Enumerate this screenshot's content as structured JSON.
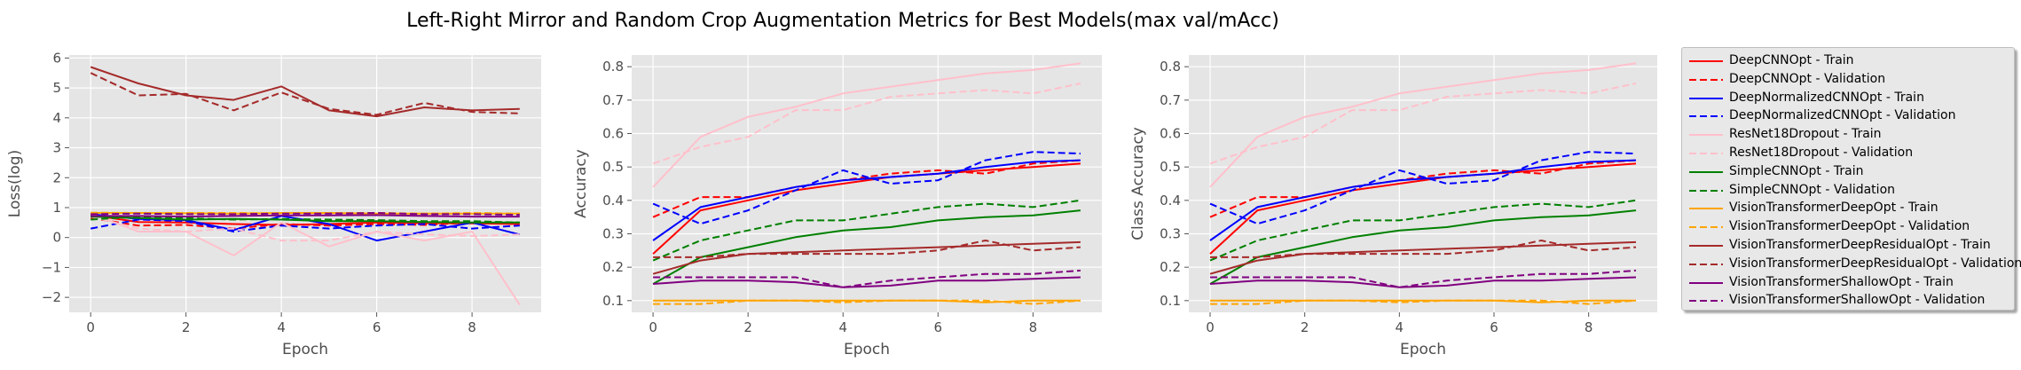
{
  "figure": {
    "title": "Left-Right Mirror and Random Crop Augmentation Metrics for Best Models(max val/mAcc)"
  },
  "styles": {
    "DeepCNNOpt": "#ff0000",
    "DeepNormalizedCNNOpt": "#0000ff",
    "ResNet18Dropout": "#ffc0cb",
    "SimpleCNNOpt": "#008000",
    "VisionTransformerDeepOpt": "#ffa500",
    "VisionTransformerDeepResidualOpt": "#a52a2a",
    "VisionTransformerShallowOpt": "#800080"
  },
  "legend": [
    {
      "label": "DeepCNNOpt - Train",
      "model": "DeepCNNOpt",
      "dash": false
    },
    {
      "label": "DeepCNNOpt - Validation",
      "model": "DeepCNNOpt",
      "dash": true
    },
    {
      "label": "DeepNormalizedCNNOpt - Train",
      "model": "DeepNormalizedCNNOpt",
      "dash": false
    },
    {
      "label": "DeepNormalizedCNNOpt - Validation",
      "model": "DeepNormalizedCNNOpt",
      "dash": true
    },
    {
      "label": "ResNet18Dropout - Train",
      "model": "ResNet18Dropout",
      "dash": false
    },
    {
      "label": "ResNet18Dropout - Validation",
      "model": "ResNet18Dropout",
      "dash": true
    },
    {
      "label": "SimpleCNNOpt - Train",
      "model": "SimpleCNNOpt",
      "dash": false
    },
    {
      "label": "SimpleCNNOpt - Validation",
      "model": "SimpleCNNOpt",
      "dash": true
    },
    {
      "label": "VisionTransformerDeepOpt - Train",
      "model": "VisionTransformerDeepOpt",
      "dash": false
    },
    {
      "label": "VisionTransformerDeepOpt - Validation",
      "model": "VisionTransformerDeepOpt",
      "dash": true
    },
    {
      "label": "VisionTransformerDeepResidualOpt - Train",
      "model": "VisionTransformerDeepResidualOpt",
      "dash": false
    },
    {
      "label": "VisionTransformerDeepResidualOpt - Validation",
      "model": "VisionTransformerDeepResidualOpt",
      "dash": true
    },
    {
      "label": "VisionTransformerShallowOpt - Train",
      "model": "VisionTransformerShallowOpt",
      "dash": false
    },
    {
      "label": "VisionTransformerShallowOpt - Validation",
      "model": "VisionTransformerShallowOpt",
      "dash": true
    }
  ],
  "chart_data": [
    {
      "type": "line",
      "xlabel": "Epoch",
      "ylabel": "Loss(log)",
      "xlim": [
        -0.45,
        9.45
      ],
      "ylim": [
        -2.5,
        6.1
      ],
      "xticks": [
        0,
        2,
        4,
        6,
        8
      ],
      "yticks": [
        -2,
        -1,
        0,
        1,
        2,
        3,
        4,
        5,
        6
      ],
      "grid": true,
      "x": [
        0,
        1,
        2,
        3,
        4,
        5,
        6,
        7,
        8,
        9
      ],
      "series": [
        {
          "name": "DeepCNNOpt - Train",
          "model": "DeepCNNOpt",
          "dash": false,
          "values": [
            0.75,
            0.52,
            0.5,
            0.45,
            0.42,
            0.45,
            0.5,
            0.48,
            0.47,
            0.45
          ]
        },
        {
          "name": "DeepCNNOpt - Validation",
          "model": "DeepCNNOpt",
          "dash": true,
          "values": [
            0.65,
            0.4,
            0.42,
            0.3,
            0.45,
            0.4,
            0.45,
            0.42,
            0.5,
            0.45
          ]
        },
        {
          "name": "DeepNormalizedCNNOpt - Train",
          "model": "DeepNormalizedCNNOpt",
          "dash": false,
          "values": [
            0.78,
            0.62,
            0.58,
            0.25,
            0.72,
            0.45,
            -0.1,
            0.2,
            0.5,
            0.1
          ]
        },
        {
          "name": "DeepNormalizedCNNOpt - Validation",
          "model": "DeepNormalizedCNNOpt",
          "dash": true,
          "values": [
            0.3,
            0.6,
            0.55,
            0.2,
            0.4,
            0.3,
            0.4,
            0.45,
            0.3,
            0.4
          ]
        },
        {
          "name": "ResNet18Dropout - Train",
          "model": "ResNet18Dropout",
          "dash": false,
          "values": [
            0.8,
            0.2,
            0.2,
            -0.6,
            0.5,
            -0.3,
            0.2,
            -0.1,
            0.2,
            -2.25
          ]
        },
        {
          "name": "ResNet18Dropout - Validation",
          "model": "ResNet18Dropout",
          "dash": true,
          "values": [
            0.7,
            0.3,
            0.2,
            0.3,
            -0.1,
            -0.1,
            0.2,
            0.1,
            0.05,
            0.1
          ]
        },
        {
          "name": "SimpleCNNOpt - Train",
          "model": "SimpleCNNOpt",
          "dash": false,
          "values": [
            0.7,
            0.65,
            0.6,
            0.62,
            0.6,
            0.55,
            0.55,
            0.52,
            0.5,
            0.5
          ]
        },
        {
          "name": "SimpleCNNOpt - Validation",
          "model": "SimpleCNNOpt",
          "dash": true,
          "values": [
            0.6,
            0.7,
            0.65,
            0.6,
            0.62,
            0.6,
            0.58,
            0.55,
            0.55,
            0.5
          ]
        },
        {
          "name": "VisionTransformerDeepOpt - Train",
          "model": "VisionTransformerDeepOpt",
          "dash": false,
          "values": [
            0.82,
            0.82,
            0.81,
            0.8,
            0.82,
            0.82,
            0.8,
            0.8,
            0.8,
            0.8
          ]
        },
        {
          "name": "VisionTransformerDeepOpt - Validation",
          "model": "VisionTransformerDeepOpt",
          "dash": true,
          "values": [
            0.83,
            0.82,
            0.82,
            0.82,
            0.81,
            0.82,
            0.82,
            0.8,
            0.82,
            0.8
          ]
        },
        {
          "name": "VisionTransformerDeepResidualOpt - Train",
          "model": "VisionTransformerDeepResidualOpt",
          "dash": false,
          "values": [
            5.7,
            5.15,
            4.75,
            4.6,
            5.05,
            4.25,
            4.05,
            4.35,
            4.25,
            4.3
          ]
        },
        {
          "name": "VisionTransformerDeepResidualOpt - Validation",
          "model": "VisionTransformerDeepResidualOpt",
          "dash": true,
          "values": [
            5.5,
            4.75,
            4.8,
            4.25,
            4.85,
            4.3,
            4.1,
            4.5,
            4.2,
            4.15
          ]
        },
        {
          "name": "VisionTransformerShallowOpt - Train",
          "model": "VisionTransformerShallowOpt",
          "dash": false,
          "values": [
            0.72,
            0.72,
            0.7,
            0.72,
            0.74,
            0.74,
            0.75,
            0.72,
            0.7,
            0.7
          ]
        },
        {
          "name": "VisionTransformerShallowOpt - Validation",
          "model": "VisionTransformerShallowOpt",
          "dash": true,
          "values": [
            0.78,
            0.8,
            0.78,
            0.78,
            0.8,
            0.8,
            0.82,
            0.78,
            0.78,
            0.76
          ]
        }
      ]
    },
    {
      "type": "line",
      "xlabel": "Epoch",
      "ylabel": "Accuracy",
      "xlim": [
        -0.45,
        9.45
      ],
      "ylim": [
        0.065,
        0.835
      ],
      "xticks": [
        0,
        2,
        4,
        6,
        8
      ],
      "yticks": [
        0.1,
        0.2,
        0.3,
        0.4,
        0.5,
        0.6,
        0.7,
        0.8
      ],
      "grid": true,
      "x": [
        0,
        1,
        2,
        3,
        4,
        5,
        6,
        7,
        8,
        9
      ],
      "series": [
        {
          "name": "DeepCNNOpt - Train",
          "model": "DeepCNNOpt",
          "dash": false,
          "values": [
            0.24,
            0.37,
            0.4,
            0.43,
            0.45,
            0.47,
            0.48,
            0.49,
            0.5,
            0.51
          ]
        },
        {
          "name": "DeepCNNOpt - Validation",
          "model": "DeepCNNOpt",
          "dash": true,
          "values": [
            0.35,
            0.41,
            0.41,
            0.44,
            0.46,
            0.48,
            0.49,
            0.48,
            0.51,
            0.52
          ]
        },
        {
          "name": "DeepNormalizedCNNOpt - Train",
          "model": "DeepNormalizedCNNOpt",
          "dash": false,
          "values": [
            0.28,
            0.38,
            0.41,
            0.44,
            0.46,
            0.47,
            0.48,
            0.5,
            0.515,
            0.52
          ]
        },
        {
          "name": "DeepNormalizedCNNOpt - Validation",
          "model": "DeepNormalizedCNNOpt",
          "dash": true,
          "values": [
            0.39,
            0.33,
            0.37,
            0.43,
            0.49,
            0.45,
            0.46,
            0.52,
            0.545,
            0.54
          ]
        },
        {
          "name": "ResNet18Dropout - Train",
          "model": "ResNet18Dropout",
          "dash": false,
          "values": [
            0.44,
            0.59,
            0.65,
            0.68,
            0.72,
            0.74,
            0.76,
            0.78,
            0.79,
            0.81
          ]
        },
        {
          "name": "ResNet18Dropout - Validation",
          "model": "ResNet18Dropout",
          "dash": true,
          "values": [
            0.51,
            0.56,
            0.59,
            0.67,
            0.67,
            0.71,
            0.72,
            0.73,
            0.72,
            0.75
          ]
        },
        {
          "name": "SimpleCNNOpt - Train",
          "model": "SimpleCNNOpt",
          "dash": false,
          "values": [
            0.15,
            0.23,
            0.26,
            0.29,
            0.31,
            0.32,
            0.34,
            0.35,
            0.355,
            0.37
          ]
        },
        {
          "name": "SimpleCNNOpt - Validation",
          "model": "SimpleCNNOpt",
          "dash": true,
          "values": [
            0.22,
            0.28,
            0.31,
            0.34,
            0.34,
            0.36,
            0.38,
            0.39,
            0.38,
            0.4
          ]
        },
        {
          "name": "VisionTransformerDeepOpt - Train",
          "model": "VisionTransformerDeepOpt",
          "dash": false,
          "values": [
            0.1,
            0.1,
            0.1,
            0.1,
            0.1,
            0.1,
            0.1,
            0.095,
            0.1,
            0.1
          ]
        },
        {
          "name": "VisionTransformerDeepOpt - Validation",
          "model": "VisionTransformerDeepOpt",
          "dash": true,
          "values": [
            0.09,
            0.09,
            0.1,
            0.1,
            0.095,
            0.1,
            0.1,
            0.1,
            0.09,
            0.1
          ]
        },
        {
          "name": "VisionTransformerDeepResidualOpt - Train",
          "model": "VisionTransformerDeepResidualOpt",
          "dash": false,
          "values": [
            0.18,
            0.22,
            0.24,
            0.245,
            0.25,
            0.255,
            0.26,
            0.265,
            0.27,
            0.275
          ]
        },
        {
          "name": "VisionTransformerDeepResidualOpt - Validation",
          "model": "VisionTransformerDeepResidualOpt",
          "dash": true,
          "values": [
            0.23,
            0.23,
            0.24,
            0.24,
            0.24,
            0.24,
            0.25,
            0.28,
            0.25,
            0.26
          ]
        },
        {
          "name": "VisionTransformerShallowOpt - Train",
          "model": "VisionTransformerShallowOpt",
          "dash": false,
          "values": [
            0.15,
            0.16,
            0.16,
            0.155,
            0.14,
            0.145,
            0.16,
            0.16,
            0.165,
            0.17
          ]
        },
        {
          "name": "VisionTransformerShallowOpt - Validation",
          "model": "VisionTransformerShallowOpt",
          "dash": true,
          "values": [
            0.17,
            0.17,
            0.17,
            0.17,
            0.14,
            0.16,
            0.17,
            0.18,
            0.18,
            0.19
          ]
        }
      ]
    },
    {
      "type": "line",
      "xlabel": "Epoch",
      "ylabel": "Class Accuracy",
      "xlim": [
        -0.45,
        9.45
      ],
      "ylim": [
        0.065,
        0.835
      ],
      "xticks": [
        0,
        2,
        4,
        6,
        8
      ],
      "yticks": [
        0.1,
        0.2,
        0.3,
        0.4,
        0.5,
        0.6,
        0.7,
        0.8
      ],
      "grid": true,
      "x": [
        0,
        1,
        2,
        3,
        4,
        5,
        6,
        7,
        8,
        9
      ],
      "series": [
        {
          "name": "DeepCNNOpt - Train",
          "model": "DeepCNNOpt",
          "dash": false,
          "values": [
            0.24,
            0.37,
            0.4,
            0.43,
            0.45,
            0.47,
            0.48,
            0.49,
            0.5,
            0.51
          ]
        },
        {
          "name": "DeepCNNOpt - Validation",
          "model": "DeepCNNOpt",
          "dash": true,
          "values": [
            0.35,
            0.41,
            0.41,
            0.44,
            0.46,
            0.48,
            0.49,
            0.48,
            0.51,
            0.52
          ]
        },
        {
          "name": "DeepNormalizedCNNOpt - Train",
          "model": "DeepNormalizedCNNOpt",
          "dash": false,
          "values": [
            0.28,
            0.38,
            0.41,
            0.44,
            0.46,
            0.47,
            0.48,
            0.5,
            0.515,
            0.52
          ]
        },
        {
          "name": "DeepNormalizedCNNOpt - Validation",
          "model": "DeepNormalizedCNNOpt",
          "dash": true,
          "values": [
            0.39,
            0.33,
            0.37,
            0.43,
            0.49,
            0.45,
            0.46,
            0.52,
            0.545,
            0.54
          ]
        },
        {
          "name": "ResNet18Dropout - Train",
          "model": "ResNet18Dropout",
          "dash": false,
          "values": [
            0.44,
            0.59,
            0.65,
            0.68,
            0.72,
            0.74,
            0.76,
            0.78,
            0.79,
            0.81
          ]
        },
        {
          "name": "ResNet18Dropout - Validation",
          "model": "ResNet18Dropout",
          "dash": true,
          "values": [
            0.51,
            0.56,
            0.59,
            0.67,
            0.67,
            0.71,
            0.72,
            0.73,
            0.72,
            0.75
          ]
        },
        {
          "name": "SimpleCNNOpt - Train",
          "model": "SimpleCNNOpt",
          "dash": false,
          "values": [
            0.15,
            0.23,
            0.26,
            0.29,
            0.31,
            0.32,
            0.34,
            0.35,
            0.355,
            0.37
          ]
        },
        {
          "name": "SimpleCNNOpt - Validation",
          "model": "SimpleCNNOpt",
          "dash": true,
          "values": [
            0.22,
            0.28,
            0.31,
            0.34,
            0.34,
            0.36,
            0.38,
            0.39,
            0.38,
            0.4
          ]
        },
        {
          "name": "VisionTransformerDeepOpt - Train",
          "model": "VisionTransformerDeepOpt",
          "dash": false,
          "values": [
            0.1,
            0.1,
            0.1,
            0.1,
            0.1,
            0.1,
            0.1,
            0.095,
            0.1,
            0.1
          ]
        },
        {
          "name": "VisionTransformerDeepOpt - Validation",
          "model": "VisionTransformerDeepOpt",
          "dash": true,
          "values": [
            0.09,
            0.09,
            0.1,
            0.1,
            0.095,
            0.1,
            0.1,
            0.1,
            0.09,
            0.1
          ]
        },
        {
          "name": "VisionTransformerDeepResidualOpt - Train",
          "model": "VisionTransformerDeepResidualOpt",
          "dash": false,
          "values": [
            0.18,
            0.22,
            0.24,
            0.245,
            0.25,
            0.255,
            0.26,
            0.265,
            0.27,
            0.275
          ]
        },
        {
          "name": "VisionTransformerDeepResidualOpt - Validation",
          "model": "VisionTransformerDeepResidualOpt",
          "dash": true,
          "values": [
            0.23,
            0.23,
            0.24,
            0.24,
            0.24,
            0.24,
            0.25,
            0.28,
            0.25,
            0.26
          ]
        },
        {
          "name": "VisionTransformerShallowOpt - Train",
          "model": "VisionTransformerShallowOpt",
          "dash": false,
          "values": [
            0.15,
            0.16,
            0.16,
            0.155,
            0.14,
            0.145,
            0.16,
            0.16,
            0.165,
            0.17
          ]
        },
        {
          "name": "VisionTransformerShallowOpt - Validation",
          "model": "VisionTransformerShallowOpt",
          "dash": true,
          "values": [
            0.17,
            0.17,
            0.17,
            0.17,
            0.14,
            0.16,
            0.17,
            0.18,
            0.18,
            0.19
          ]
        }
      ]
    }
  ]
}
